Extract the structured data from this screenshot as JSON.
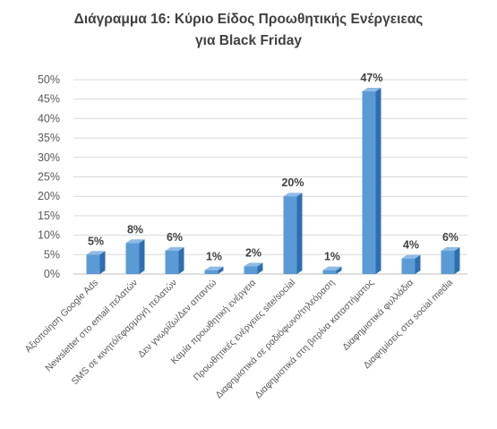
{
  "chart_data": {
    "type": "bar",
    "title_lines": [
      "Διάγραμμα 16: Κύριο Είδος Προωθητικής Ενέργειεας",
      "για Black Friday"
    ],
    "categories": [
      "Αξιοποίηση Google Ads",
      "Newsletter στο email πελατών",
      "SMS σε κινητό/εφαρμογή πελατών",
      "Δεν γνωρίζω/Δεν απαντώ",
      "Καμία προωθητική ενέργεια",
      "Προωθητικές ενέργειες site/social",
      "Διαφημιστικά σε ραδιόφωνο/τηλεόραση",
      "Διαφημιστικά στη βιτρίνα καταστήματος",
      "Διαφημιστικά φυλλάδια",
      "Διαφημίσεις στα social media"
    ],
    "values": [
      5,
      8,
      6,
      1,
      2,
      20,
      1,
      47,
      4,
      6
    ],
    "data_labels": [
      "5%",
      "8%",
      "6%",
      "1%",
      "2%",
      "20%",
      "1%",
      "47%",
      "4%",
      "6%"
    ],
    "y_ticks": [
      "0%",
      "5%",
      "10%",
      "15%",
      "20%",
      "25%",
      "30%",
      "35%",
      "40%",
      "45%",
      "50%"
    ],
    "ylim": [
      0,
      50
    ],
    "grid": true,
    "legend": "none",
    "colors": {
      "bar_front": "#5b9bd5",
      "bar_side": "#2f6fb0",
      "bar_top": "#8ebbe6",
      "grid": "#d9d9d9",
      "floor": "#bfbfbf"
    }
  }
}
